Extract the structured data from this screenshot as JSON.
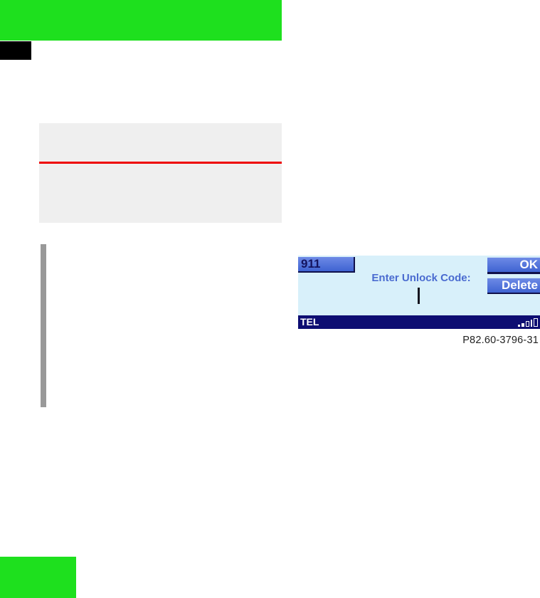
{
  "page": {
    "header_bar_color": "#1ee01e",
    "black_tab_color": "#000000",
    "footer_bar_color": "#1ee01e",
    "change_bar_color": "#999999",
    "note_box": {
      "background": "#efefef",
      "rule_color": "#ee0000"
    },
    "figure_caption": "P82.60-3796-31"
  },
  "phone_display": {
    "background": "#d8f0fa",
    "button_blue": "#4a6edb",
    "prompt_color": "#4a6bd0",
    "status_bar_color": "#0d0d72",
    "emergency_button_label": "911",
    "ok_button_label": "OK",
    "delete_button_label": "Delete",
    "prompt_text": "Enter Unlock Code:",
    "input_value": "",
    "cursor_glyph": "|",
    "status_label": "TEL",
    "signal_icon": "signal-strength-bars"
  }
}
